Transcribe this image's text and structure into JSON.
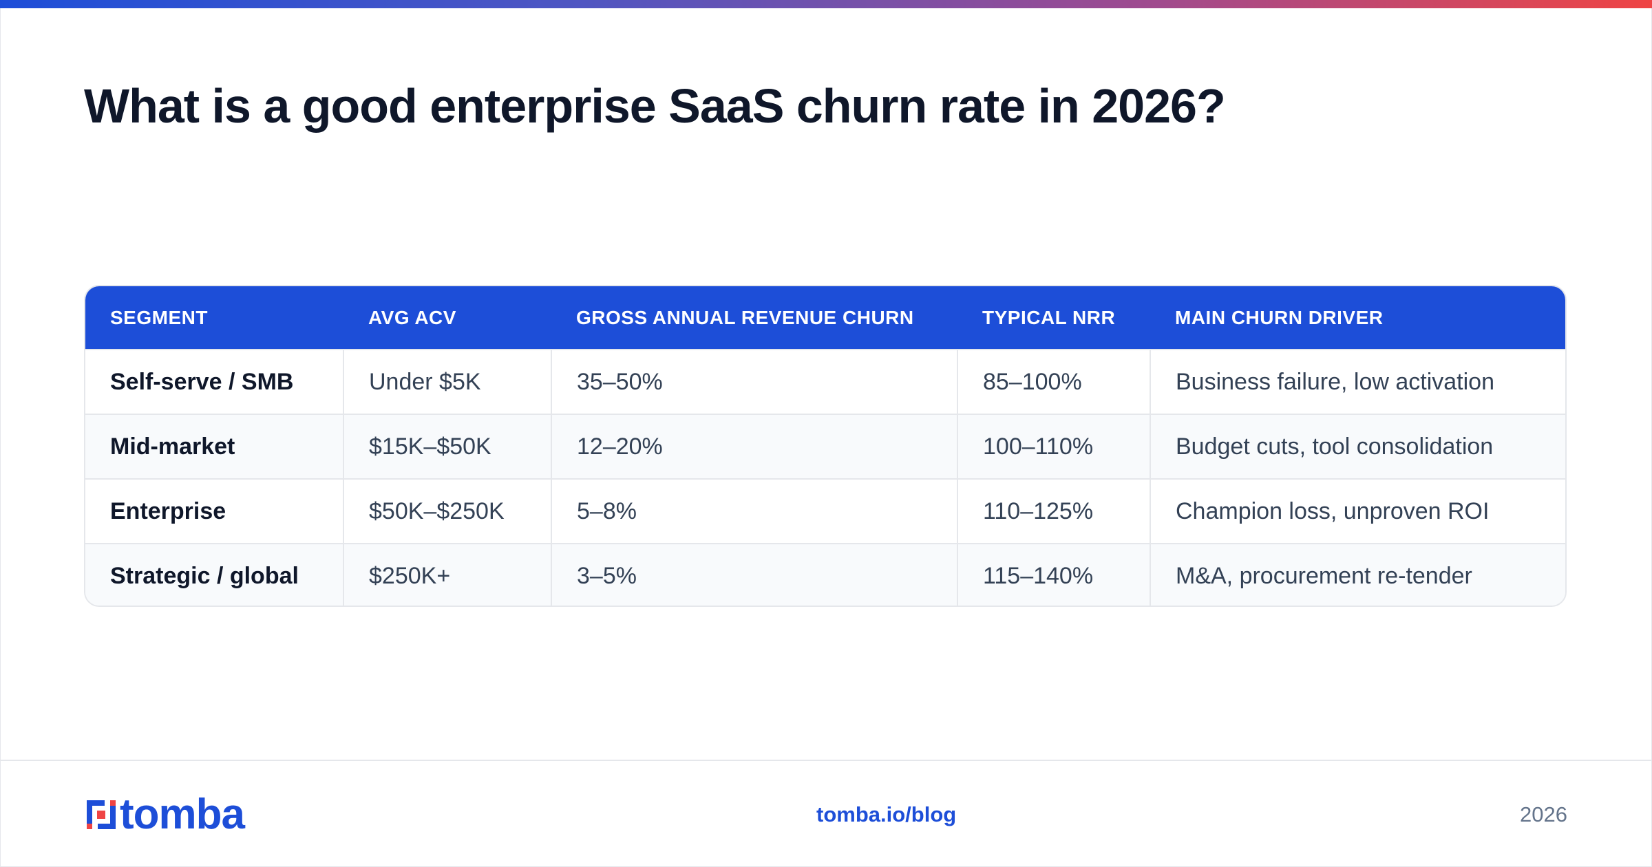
{
  "title": "What is a good enterprise SaaS churn rate in 2026?",
  "colors": {
    "brand_blue": "#1d4ed8",
    "accent_red": "#ef4444",
    "title": "#0f172a",
    "body_text": "#334155",
    "muted": "#64748b"
  },
  "table": {
    "headers": [
      "SEGMENT",
      "AVG ACV",
      "GROSS ANNUAL REVENUE CHURN",
      "TYPICAL NRR",
      "MAIN CHURN DRIVER"
    ],
    "rows": [
      [
        "Self-serve / SMB",
        "Under $5K",
        "35–50%",
        "85–100%",
        "Business failure, low activation"
      ],
      [
        "Mid-market",
        "$15K–$50K",
        "12–20%",
        "100–110%",
        "Budget cuts, tool consolidation"
      ],
      [
        "Enterprise",
        "$50K–$250K",
        "5–8%",
        "110–125%",
        "Champion loss, unproven ROI"
      ],
      [
        "Strategic / global",
        "$250K+",
        "3–5%",
        "115–140%",
        "M&A, procurement re-tender"
      ]
    ]
  },
  "footer": {
    "logo_text": "tomba",
    "logo_icon": "tomba-logo-icon",
    "link": "tomba.io/blog",
    "year": "2026"
  }
}
